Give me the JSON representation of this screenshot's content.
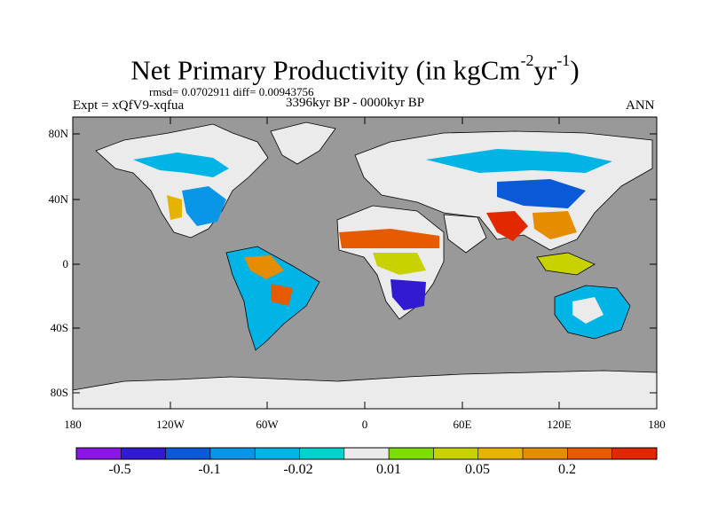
{
  "title": {
    "prefix": "Net Primary Productivity (in kgCm",
    "sup1": "-2",
    "middle": "yr",
    "sup2": "-1",
    "suffix": ")"
  },
  "stats_line": "rmsd= 0.0702911 diff= 0.00943756",
  "experiment_label": "Expt = xQfV9-xqfua",
  "period_label": "3396kyr BP - 0000kyr BP",
  "season_label": "ANN",
  "map": {
    "ocean_color": "#999999",
    "missing_color": "#ebebeb",
    "lat_ticks": [
      "80N",
      "40N",
      "0",
      "40S",
      "80S"
    ],
    "lon_ticks": [
      "180",
      "120W",
      "60W",
      "0",
      "60E",
      "120E",
      "180"
    ]
  },
  "colorbar": {
    "colors": [
      "#8c14e6",
      "#3219d2",
      "#0a5ad7",
      "#0a96e6",
      "#00b4e6",
      "#00d2cd",
      "#ebebeb",
      "#7ddc00",
      "#c8d200",
      "#e6b400",
      "#e68c00",
      "#e65a00",
      "#e12800"
    ],
    "labels": [
      "-0.5",
      "-0.1",
      "-0.02",
      "0.01",
      "0.05",
      "0.2"
    ]
  }
}
